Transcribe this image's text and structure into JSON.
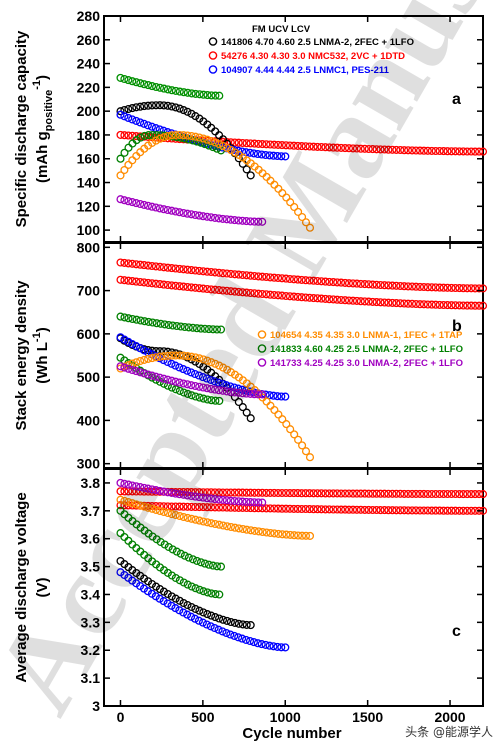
{
  "figure": {
    "watermark": "Accepted Manuscript",
    "footer_credit": "头条 @能源学人"
  },
  "chart_data": [
    {
      "type": "scatter",
      "panel_label": "a",
      "ylabel_line1": "Specific discharge capacity",
      "ylabel_line2_main": "(mAh g",
      "ylabel_line2_sub": "positive",
      "ylabel_line2_sup": "-1",
      "ylabel_line2_end": ")",
      "ylim": [
        90,
        280
      ],
      "yticks": [
        100,
        120,
        140,
        160,
        180,
        200,
        220,
        240,
        260,
        280
      ],
      "xlim": [
        -100,
        2200
      ],
      "xticks": [
        0,
        500,
        1000,
        1500,
        2000
      ],
      "legend_title": "FM UCV LCV",
      "legend": [
        {
          "label": "141806 4.70 4.60 2.5 LNMA-2, 2FEC + 1LFO",
          "color": "#000000"
        },
        {
          "label": "54276   4.30 4.30 3.0 NMC532, 2VC + 1DTD",
          "color": "#ff0000"
        },
        {
          "label": "104907 4.44 4.44 2.5 LNMC1, PES-211",
          "color": "#0000ff"
        }
      ],
      "series": [
        {
          "color": "#ff0000",
          "x_range": [
            0,
            2200
          ],
          "start": 180,
          "end": 166
        },
        {
          "color": "#000000",
          "x_range": [
            0,
            790
          ],
          "start": 200,
          "peak": 205,
          "end": 146
        },
        {
          "color": "#0000ff",
          "x_range": [
            0,
            1000
          ],
          "start": 197,
          "end": 162
        },
        {
          "color": "#008000",
          "x_range": [
            0,
            610
          ],
          "start": 160,
          "peak": 180,
          "end": 167
        },
        {
          "color": "#009000",
          "x_range": [
            0,
            600
          ],
          "start": 228,
          "end": 213
        },
        {
          "color": "#ff8c00",
          "x_range": [
            0,
            1150
          ],
          "start": 146,
          "peak": 180,
          "end": 102
        },
        {
          "color": "#a000c0",
          "x_range": [
            0,
            860
          ],
          "start": 126,
          "end": 107
        }
      ]
    },
    {
      "type": "scatter",
      "panel_label": "b",
      "ylabel_line1": "Stack energy density",
      "ylabel_line2_main": "(Wh L",
      "ylabel_line2_sup": "-1",
      "ylabel_line2_end": ")",
      "ylim": [
        290,
        810
      ],
      "yticks": [
        300,
        400,
        500,
        600,
        700,
        800
      ],
      "xlim": [
        -100,
        2200
      ],
      "xticks": [
        0,
        500,
        1000,
        1500,
        2000
      ],
      "legend": [
        {
          "label": "104654 4.35 4.35 3.0 LNMA-1, 1FEC + 1TAP",
          "color": "#ff8c00"
        },
        {
          "label": "141833 4.60 4.25 2.5 LNMA-2, 2FEC + 1LFO",
          "color": "#008000"
        },
        {
          "label": "141733 4.25 4.25 3.0 LNMA-2, 2FEC + 1LFO",
          "color": "#a000c0"
        }
      ],
      "series": [
        {
          "color": "#ff0000",
          "x_range": [
            0,
            2200
          ],
          "start": 725,
          "end": 665
        },
        {
          "color": "#ff0000",
          "x_range": [
            0,
            2200
          ],
          "start": 765,
          "end": 705
        },
        {
          "color": "#000000",
          "x_range": [
            0,
            790
          ],
          "start": 590,
          "peak": 560,
          "end": 405
        },
        {
          "color": "#0000ff",
          "x_range": [
            0,
            1000
          ],
          "start": 592,
          "end": 455
        },
        {
          "color": "#008000",
          "x_range": [
            0,
            610
          ],
          "start": 640,
          "end": 610
        },
        {
          "color": "#008000",
          "x_range": [
            0,
            600
          ],
          "start": 545,
          "end": 445
        },
        {
          "color": "#ff8c00",
          "x_range": [
            0,
            1150
          ],
          "start": 520,
          "peak": 550,
          "end": 315
        },
        {
          "color": "#a000c0",
          "x_range": [
            0,
            860
          ],
          "start": 525,
          "end": 460
        }
      ]
    },
    {
      "type": "scatter",
      "panel_label": "c",
      "ylabel_line1": "Average discharge voltage",
      "ylabel_line2_main": "(V)",
      "xlabel": "Cycle number",
      "ylim": [
        3.0,
        3.85
      ],
      "yticks": [
        3.0,
        3.1,
        3.2,
        3.3,
        3.4,
        3.5,
        3.6,
        3.7,
        3.8
      ],
      "xlim": [
        -100,
        2200
      ],
      "xticks": [
        0,
        500,
        1000,
        1500,
        2000
      ],
      "series": [
        {
          "color": "#ff0000",
          "x_range": [
            0,
            2200
          ],
          "start": 3.72,
          "end": 3.7
        },
        {
          "color": "#ff0000",
          "x_range": [
            0,
            2200
          ],
          "start": 3.77,
          "end": 3.76
        },
        {
          "color": "#a000c0",
          "x_range": [
            0,
            860
          ],
          "start": 3.8,
          "end": 3.73
        },
        {
          "color": "#ff8c00",
          "x_range": [
            0,
            1150
          ],
          "start": 3.74,
          "end": 3.61
        },
        {
          "color": "#008000",
          "x_range": [
            0,
            610
          ],
          "start": 3.7,
          "end": 3.5
        },
        {
          "color": "#008000",
          "x_range": [
            0,
            600
          ],
          "start": 3.62,
          "end": 3.4
        },
        {
          "color": "#000000",
          "x_range": [
            0,
            790
          ],
          "start": 3.52,
          "end": 3.29
        },
        {
          "color": "#0000ff",
          "x_range": [
            0,
            1000
          ],
          "start": 3.48,
          "end": 3.21
        }
      ]
    }
  ]
}
